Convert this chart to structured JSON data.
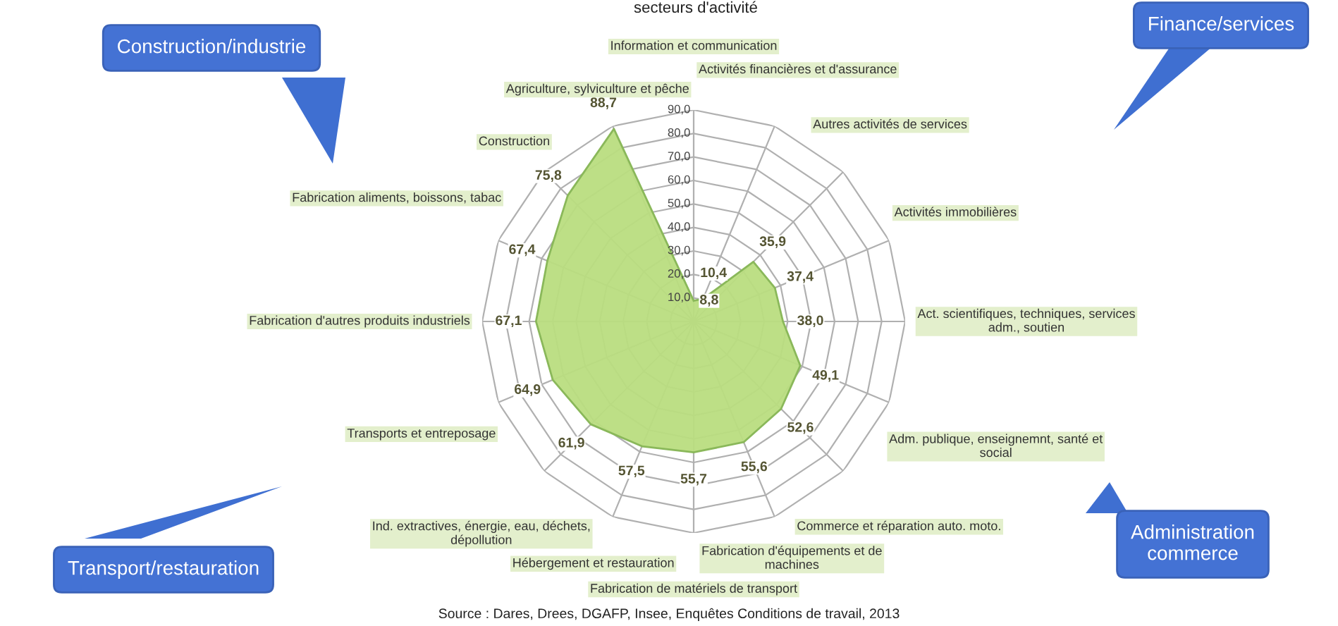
{
  "chart_data": {
    "type": "radar",
    "title": "secteurs d'activité",
    "categories": [
      "Information et communication",
      "Activités financières et d'assurance",
      "Autres activités de services",
      "Activités immobilières",
      "Act. scientifiques, techniques, services\nadm., soutien",
      "Adm. publique, enseignemnt, santé et\nsocial",
      "Commerce et réparation auto. moto.",
      "Fabrication d'équipements et de\nmachines",
      "Fabrication de matériels de transport",
      "Hébergement et restauration",
      "Ind. extractives, énergie, eau, déchets,\ndépollution",
      "Transports et entreposage",
      "Fabrication d'autres produits industriels",
      "Fabrication aliments, boissons, tabac",
      "Construction",
      "Agriculture, sylviculture et pêche"
    ],
    "series": [
      {
        "color": "#b9dd80",
        "values": [
          8.8,
          10.4,
          35.9,
          37.4,
          38.0,
          49.1,
          52.6,
          55.6,
          55.7,
          57.5,
          61.9,
          64.9,
          67.1,
          67.4,
          75.8,
          88.7
        ],
        "value_labels": [
          "8,8",
          "10,4",
          "35,9",
          "37,4",
          "38,0",
          "49,1",
          "52,6",
          "55,6",
          "55,7",
          "57,5",
          "61,9",
          "64,9",
          "67,1",
          "67,4",
          "75,8",
          "88,7"
        ]
      }
    ],
    "ylim": [
      0,
      90
    ],
    "yticks": [
      {
        "value": 10,
        "label": "10,0"
      },
      {
        "value": 20,
        "label": "20,0"
      },
      {
        "value": 30,
        "label": "30,0"
      },
      {
        "value": 40,
        "label": "40,0"
      },
      {
        "value": 50,
        "label": "50,0"
      },
      {
        "value": 60,
        "label": "60,0"
      },
      {
        "value": 70,
        "label": "70,0"
      },
      {
        "value": 80,
        "label": "80,0"
      },
      {
        "value": 90,
        "label": "90,0"
      }
    ],
    "annotations": [
      "Construction/industrie",
      "Finance/services",
      "Administration\ncommerce",
      "Transport/restauration",
      "Source : Dares, Drees, DGAFP, Insee, Enquêtes Conditions de travail, 2013"
    ]
  }
}
